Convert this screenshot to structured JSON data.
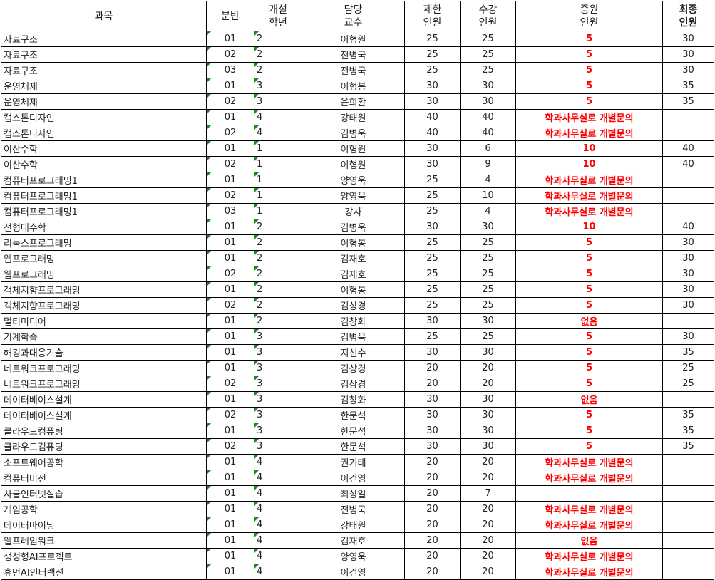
{
  "headers": [
    "과목",
    "분반",
    "개설\n학년",
    "담당\n교수",
    "제한\n인원",
    "수강\n인원",
    "증원\n인원",
    "최종\n인원"
  ],
  "rows": [
    [
      "자료구조",
      "01",
      "2",
      "이형원",
      "25",
      "25",
      "5",
      "30"
    ],
    [
      "자료구조",
      "02",
      "2",
      "전병국",
      "25",
      "25",
      "5",
      "30"
    ],
    [
      "자료구조",
      "03",
      "2",
      "전병국",
      "25",
      "25",
      "5",
      "30"
    ],
    [
      "운영체제",
      "01",
      "3",
      "이형봉",
      "30",
      "30",
      "5",
      "35"
    ],
    [
      "운영체제",
      "02",
      "3",
      "윤희환",
      "30",
      "30",
      "5",
      "35"
    ],
    [
      "캡스톤디자인",
      "01",
      "4",
      "강태원",
      "40",
      "40",
      "학과사무실로 개별문의",
      ""
    ],
    [
      "캡스톤디자인",
      "02",
      "4",
      "김병욱",
      "40",
      "40",
      "학과사무실로 개별문의",
      ""
    ],
    [
      "이산수학",
      "01",
      "1",
      "이형원",
      "30",
      "6",
      "10",
      "40"
    ],
    [
      "이산수학",
      "02",
      "1",
      "이형원",
      "30",
      "9",
      "10",
      "40"
    ],
    [
      "컴퓨터프로그래밍1",
      "01",
      "1",
      "양영욱",
      "25",
      "4",
      "학과사무실로 개별문의",
      ""
    ],
    [
      "컴퓨터프로그래밍1",
      "02",
      "1",
      "양영욱",
      "25",
      "10",
      "학과사무실로 개별문의",
      ""
    ],
    [
      "컴퓨터프로그래밍1",
      "03",
      "1",
      "강사",
      "25",
      "4",
      "학과사무실로 개별문의",
      ""
    ],
    [
      "선형대수학",
      "01",
      "2",
      "김병욱",
      "30",
      "30",
      "10",
      "40"
    ],
    [
      "리눅스프로그래밍",
      "01",
      "2",
      "이형봉",
      "25",
      "25",
      "5",
      "30"
    ],
    [
      "웹프로그래밍",
      "01",
      "2",
      "김재호",
      "25",
      "25",
      "5",
      "30"
    ],
    [
      "웹프로그래밍",
      "02",
      "2",
      "김재호",
      "25",
      "25",
      "5",
      "30"
    ],
    [
      "객체지향프로그래밍",
      "01",
      "2",
      "이형봉",
      "25",
      "25",
      "5",
      "30"
    ],
    [
      "객체지향프로그래밍",
      "02",
      "2",
      "김상경",
      "25",
      "25",
      "5",
      "30"
    ],
    [
      "멀티미디어",
      "01",
      "2",
      "김창화",
      "30",
      "30",
      "없음",
      ""
    ],
    [
      "기계학습",
      "01",
      "3",
      "김병욱",
      "25",
      "25",
      "5",
      "30"
    ],
    [
      "해킹과대응기술",
      "01",
      "3",
      "지선수",
      "30",
      "30",
      "5",
      "35"
    ],
    [
      "네트워크프로그래밍",
      "01",
      "3",
      "김상경",
      "20",
      "20",
      "5",
      "25"
    ],
    [
      "네트워크프로그래밍",
      "02",
      "3",
      "김상경",
      "20",
      "20",
      "5",
      "25"
    ],
    [
      "데이터베이스설계",
      "01",
      "3",
      "김창화",
      "30",
      "30",
      "없음",
      ""
    ],
    [
      "데이터베이스설계",
      "02",
      "3",
      "한문석",
      "30",
      "30",
      "5",
      "35"
    ],
    [
      "클라우드컴퓨팅",
      "01",
      "3",
      "한문석",
      "30",
      "30",
      "5",
      "35"
    ],
    [
      "클라우드컴퓨팅",
      "02",
      "3",
      "한문석",
      "30",
      "30",
      "5",
      "35"
    ],
    [
      "소프트웨어공학",
      "01",
      "4",
      "권기태",
      "20",
      "20",
      "학과사무실로 개별문의",
      ""
    ],
    [
      "컴퓨터비전",
      "01",
      "4",
      "이건영",
      "20",
      "20",
      "학과사무실로 개별문의",
      ""
    ],
    [
      "사물인터넷실습",
      "01",
      "4",
      "최상일",
      "20",
      "7",
      "",
      ""
    ],
    [
      "게임공학",
      "01",
      "4",
      "전병국",
      "20",
      "20",
      "학과사무실로 개별문의",
      ""
    ],
    [
      "데이터마이닝",
      "01",
      "4",
      "강태원",
      "20",
      "20",
      "학과사무실로 개별문의",
      ""
    ],
    [
      "웹프레임워크",
      "01",
      "4",
      "김재호",
      "20",
      "20",
      "없음",
      ""
    ],
    [
      "생성형AI프로젝트",
      "01",
      "4",
      "양영욱",
      "20",
      "20",
      "학과사무실로 개별문의",
      ""
    ],
    [
      "휴먼AI인터랙션",
      "01",
      "4",
      "이건영",
      "20",
      "20",
      "학과사무실로 개별문의",
      ""
    ]
  ],
  "colors": {
    "increase_text": "#ff0000",
    "comment_marker": "#1a8a1a"
  }
}
